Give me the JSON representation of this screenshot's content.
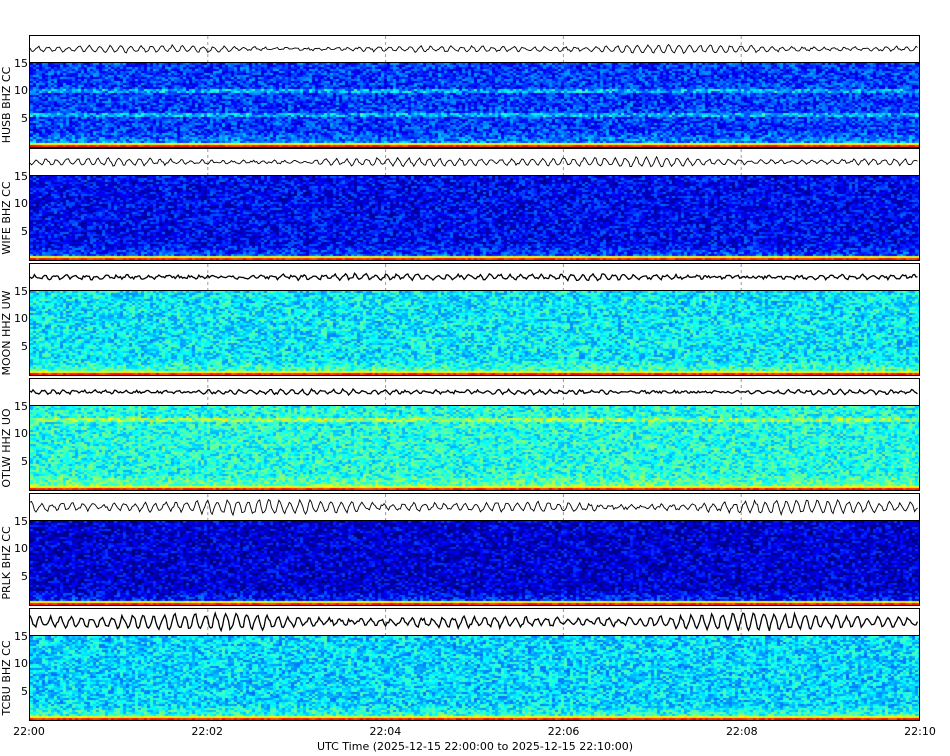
{
  "chart_data": {
    "type": "heatmap",
    "xlabel": "UTC Time (2025-12-15 22:00:00 to 2025-12-15 22:10:00)",
    "x_ticks": [
      "22:00",
      "22:02",
      "22:04",
      "22:06",
      "22:08",
      "22:10"
    ],
    "y_ticks": [
      "5",
      "10",
      "15"
    ],
    "ylim": [
      0,
      15.3
    ],
    "colormap": "jet",
    "grid": "vertical dashed lines at x ticks in waveform panels",
    "channels": [
      {
        "label": "HUSB BHZ CC",
        "background_level": 0.18,
        "bands_hz": [
          10.5,
          6
        ],
        "wave_amp": 0.35,
        "wave_color": "#000000"
      },
      {
        "label": "WIFE BHZ CC",
        "background_level": 0.12,
        "bands_hz": [],
        "wave_amp": 0.4,
        "wave_color": "#000000"
      },
      {
        "label": "MOON HHZ UW",
        "background_level": 0.36,
        "bands_hz": [],
        "wave_amp": 0.25,
        "wave_color": "#000000"
      },
      {
        "label": "OTLW HHZ UO",
        "background_level": 0.4,
        "bands_hz": [
          13
        ],
        "wave_amp": 0.2,
        "wave_color": "#000000"
      },
      {
        "label": "PRLK BHZ CC",
        "background_level": 0.08,
        "bands_hz": [],
        "wave_amp": 0.6,
        "wave_color": "#000000"
      },
      {
        "label": "TCBU BHZ CC",
        "background_level": 0.34,
        "bands_hz": [],
        "wave_amp": 0.7,
        "wave_color": "#000000"
      }
    ]
  }
}
